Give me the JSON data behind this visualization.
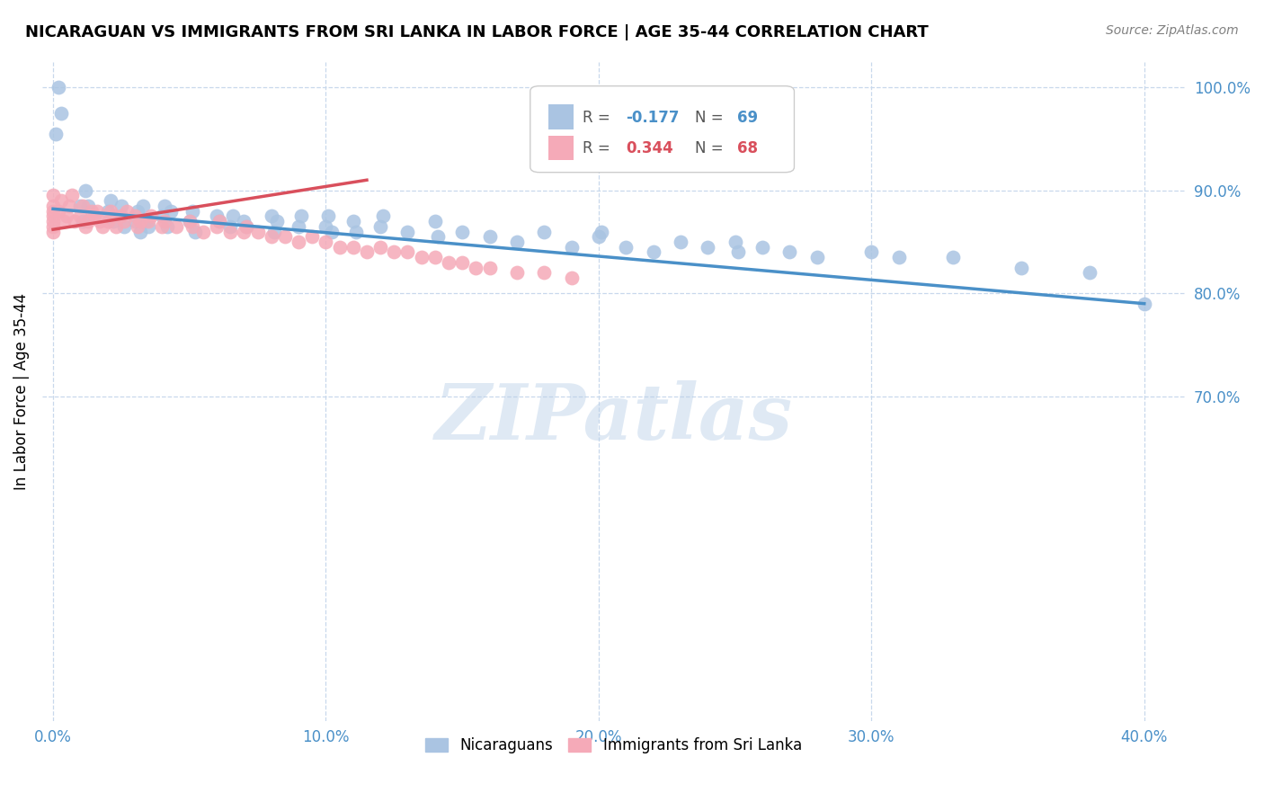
{
  "title": "NICARAGUAN VS IMMIGRANTS FROM SRI LANKA IN LABOR FORCE | AGE 35-44 CORRELATION CHART",
  "source": "Source: ZipAtlas.com",
  "ylabel": "In Labor Force | Age 35-44",
  "xlim": [
    -0.004,
    0.415
  ],
  "ylim": [
    0.385,
    1.025
  ],
  "xticks": [
    0.0,
    0.1,
    0.2,
    0.3,
    0.4
  ],
  "xtick_labels": [
    "0.0%",
    "10.0%",
    "20.0%",
    "30.0%",
    "40.0%"
  ],
  "ytick_labels_right": [
    "100.0%",
    "90.0%",
    "80.0%",
    "70.0%"
  ],
  "yticks_right": [
    1.0,
    0.9,
    0.8,
    0.7
  ],
  "blue_color": "#aac4e2",
  "pink_color": "#f5aab8",
  "blue_line_color": "#4a90c8",
  "pink_line_color": "#d94f5c",
  "R_blue": -0.177,
  "N_blue": 69,
  "R_pink": 0.344,
  "N_pink": 68,
  "watermark": "ZIPatlas",
  "blue_scatter_x": [
    0.001,
    0.002,
    0.003,
    0.01,
    0.011,
    0.012,
    0.013,
    0.02,
    0.021,
    0.022,
    0.025,
    0.026,
    0.03,
    0.031,
    0.032,
    0.033,
    0.034,
    0.035,
    0.04,
    0.041,
    0.042,
    0.043,
    0.05,
    0.051,
    0.052,
    0.06,
    0.061,
    0.065,
    0.066,
    0.07,
    0.071,
    0.08,
    0.081,
    0.082,
    0.09,
    0.091,
    0.1,
    0.101,
    0.102,
    0.11,
    0.111,
    0.12,
    0.121,
    0.13,
    0.14,
    0.141,
    0.15,
    0.16,
    0.17,
    0.18,
    0.19,
    0.2,
    0.201,
    0.21,
    0.22,
    0.23,
    0.24,
    0.25,
    0.251,
    0.26,
    0.27,
    0.28,
    0.3,
    0.31,
    0.33,
    0.355,
    0.38,
    0.4
  ],
  "blue_scatter_y": [
    0.955,
    1.0,
    0.975,
    0.885,
    0.87,
    0.9,
    0.885,
    0.88,
    0.89,
    0.87,
    0.885,
    0.865,
    0.87,
    0.88,
    0.86,
    0.885,
    0.87,
    0.865,
    0.875,
    0.885,
    0.865,
    0.88,
    0.87,
    0.88,
    0.86,
    0.875,
    0.87,
    0.865,
    0.875,
    0.87,
    0.865,
    0.875,
    0.86,
    0.87,
    0.865,
    0.875,
    0.865,
    0.875,
    0.86,
    0.87,
    0.86,
    0.865,
    0.875,
    0.86,
    0.87,
    0.855,
    0.86,
    0.855,
    0.85,
    0.86,
    0.845,
    0.855,
    0.86,
    0.845,
    0.84,
    0.85,
    0.845,
    0.85,
    0.84,
    0.845,
    0.84,
    0.835,
    0.84,
    0.835,
    0.835,
    0.825,
    0.82,
    0.79
  ],
  "pink_scatter_x": [
    0.0,
    0.0,
    0.0,
    0.0,
    0.0,
    0.0,
    0.0,
    0.002,
    0.003,
    0.004,
    0.005,
    0.006,
    0.007,
    0.008,
    0.01,
    0.011,
    0.012,
    0.013,
    0.014,
    0.015,
    0.016,
    0.017,
    0.018,
    0.02,
    0.021,
    0.022,
    0.023,
    0.025,
    0.026,
    0.027,
    0.03,
    0.031,
    0.032,
    0.035,
    0.036,
    0.04,
    0.041,
    0.045,
    0.05,
    0.051,
    0.055,
    0.06,
    0.061,
    0.065,
    0.07,
    0.071,
    0.075,
    0.08,
    0.085,
    0.09,
    0.095,
    0.1,
    0.105,
    0.11,
    0.115,
    0.12,
    0.125,
    0.13,
    0.135,
    0.14,
    0.145,
    0.15,
    0.155,
    0.16,
    0.17,
    0.18,
    0.19
  ],
  "pink_scatter_y": [
    0.875,
    0.87,
    0.88,
    0.885,
    0.895,
    0.86,
    0.865,
    0.88,
    0.89,
    0.87,
    0.875,
    0.885,
    0.895,
    0.87,
    0.875,
    0.885,
    0.865,
    0.87,
    0.88,
    0.875,
    0.88,
    0.87,
    0.865,
    0.87,
    0.88,
    0.875,
    0.865,
    0.875,
    0.87,
    0.88,
    0.875,
    0.865,
    0.87,
    0.87,
    0.875,
    0.865,
    0.87,
    0.865,
    0.87,
    0.865,
    0.86,
    0.865,
    0.87,
    0.86,
    0.86,
    0.865,
    0.86,
    0.855,
    0.855,
    0.85,
    0.855,
    0.85,
    0.845,
    0.845,
    0.84,
    0.845,
    0.84,
    0.84,
    0.835,
    0.835,
    0.83,
    0.83,
    0.825,
    0.825,
    0.82,
    0.82,
    0.815
  ],
  "blue_line_x": [
    0.0,
    0.4
  ],
  "blue_line_y": [
    0.882,
    0.79
  ],
  "pink_line_x": [
    0.0,
    0.115
  ],
  "pink_line_y": [
    0.862,
    0.91
  ]
}
